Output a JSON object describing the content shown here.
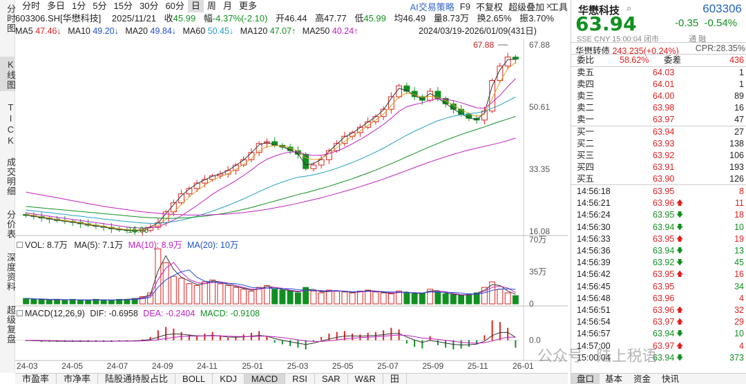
{
  "left_tabs": [
    "分时图",
    "K线图",
    "TICK",
    "成交明细",
    "分价表",
    "深度资料",
    "超级复盘"
  ],
  "period_tabs": [
    "分时",
    "多日",
    "1分",
    "5分",
    "15分",
    "30分",
    "60分",
    "日",
    "周",
    "月",
    "更多"
  ],
  "active_period": "日",
  "menu": {
    "ai": "AI交易策略",
    "f9": "F9",
    "fq": "不复权",
    "overlay": "超级叠加",
    "tools": "工具"
  },
  "info": {
    "code": "603306.SH[华懋科技]",
    "date": "2025/11/21",
    "close_label": "收",
    "close": "45.99",
    "chg_label": "幅",
    "chg": "-4.37%(-2.10)",
    "open_label": "开",
    "open": "46.44",
    "high_label": "高",
    "high": "47.77",
    "low_label": "低",
    "low": "45.99",
    "avg_label": "均",
    "avg": "46.49",
    "vol_label": "量",
    "vol": "8.73万",
    "turn_label": "换",
    "turn": "2.65%",
    "amp_label": "振",
    "amp": "3.70%"
  },
  "ma": {
    "ma5": "MA5",
    "ma5_val": "47.46↓",
    "ma10": "MA10",
    "ma10_val": "49.20↓",
    "ma20": "MA20",
    "ma20_val": "49.84↓",
    "ma60": "MA60",
    "ma60_val": "50.45↓",
    "ma120": "MA120",
    "ma120_val": "47.07↑",
    "ma250": "MA250",
    "ma250_val": "40.24↑",
    "range": "2024/03/19-2026/01/09(431日)"
  },
  "chart_data": {
    "type": "candlestick",
    "price_axis": [
      "67.88",
      "50.61",
      "33.35",
      "16.08"
    ],
    "max_label": "67.88",
    "min_label": "16.08",
    "x_ticks": [
      "24-03",
      "24-05",
      "24-07",
      "24-09",
      "24-11",
      "25-01",
      "25-03",
      "25-05",
      "25-07",
      "25-09",
      "25-11",
      "26-01"
    ],
    "close_series": [
      20.5,
      20.2,
      19.8,
      19.5,
      19.1,
      18.9,
      18.6,
      18.2,
      17.8,
      17.5,
      17.2,
      16.8,
      16.5,
      16.3,
      16.1,
      16.4,
      17.2,
      18.5,
      21.5,
      24.0,
      26.5,
      28.0,
      29.5,
      30.5,
      31.5,
      32.0,
      33.0,
      34.5,
      36.0,
      38.0,
      40.5,
      41.0,
      40.0,
      39.5,
      38.5,
      37.5,
      33.5,
      34.5,
      36.0,
      38.5,
      40.5,
      42.5,
      43.5,
      45.0,
      46.5,
      48.0,
      50.0,
      53.5,
      56.5,
      55.0,
      53.5,
      52.5,
      55.0,
      53.0,
      51.5,
      50.0,
      48.5,
      47.5,
      47.0,
      49.5,
      58.0,
      62.0,
      64.5,
      63.9
    ],
    "ma_series": [
      {
        "name": "MA5",
        "color": "#333333",
        "values": [
          20.6,
          20.3,
          19.9,
          19.6,
          19.2,
          18.9,
          18.6,
          18.3,
          17.9,
          17.6,
          17.3,
          16.9,
          16.6,
          16.4,
          16.2,
          16.5,
          17.3,
          18.4,
          21.0,
          23.5,
          26.0,
          27.8,
          29.3,
          30.4,
          31.4,
          32.0,
          33.0,
          34.4,
          35.9,
          37.9,
          40.1,
          40.8,
          40.1,
          39.6,
          38.7,
          37.6,
          34.5,
          34.9,
          36.1,
          38.3,
          40.3,
          42.3,
          43.4,
          44.9,
          46.4,
          47.9,
          49.8,
          53.0,
          55.8,
          55.2,
          53.8,
          52.8,
          54.4,
          53.1,
          51.6,
          50.1,
          48.7,
          47.6,
          47.1,
          49.0,
          56.5,
          61.0,
          63.8,
          63.9
        ]
      },
      {
        "name": "MA10",
        "color": "#e0a020",
        "values": [
          20.8,
          20.5,
          20.1,
          19.8,
          19.4,
          19.1,
          18.8,
          18.5,
          18.1,
          17.8,
          17.5,
          17.1,
          16.8,
          16.6,
          16.4,
          16.6,
          17.0,
          17.8,
          19.4,
          21.4,
          23.6,
          25.6,
          27.4,
          28.9,
          30.3,
          31.2,
          32.1,
          33.3,
          34.6,
          36.3,
          38.4,
          39.6,
          39.9,
          39.8,
          39.2,
          38.4,
          36.5,
          36.0,
          36.3,
          37.7,
          39.3,
          41.1,
          42.5,
          44.0,
          45.5,
          47.0,
          48.6,
          51.0,
          53.5,
          54.5,
          54.0,
          53.3,
          53.6,
          53.3,
          52.4,
          51.2,
          49.9,
          48.8,
          48.0,
          48.6,
          53.0,
          57.6,
          61.3,
          63.0
        ]
      },
      {
        "name": "MA20",
        "color": "#c020c0",
        "values": [
          21.2,
          20.9,
          20.6,
          20.3,
          20.0,
          19.7,
          19.4,
          19.1,
          18.8,
          18.5,
          18.2,
          17.9,
          17.6,
          17.3,
          17.1,
          17.0,
          17.1,
          17.4,
          18.2,
          19.2,
          20.4,
          21.8,
          23.3,
          24.8,
          26.4,
          27.7,
          28.9,
          30.2,
          31.6,
          33.1,
          34.8,
          36.1,
          37.0,
          37.7,
          38.1,
          38.2,
          37.4,
          37.2,
          37.2,
          37.7,
          38.4,
          39.3,
          40.4,
          41.6,
          42.9,
          44.3,
          45.8,
          47.5,
          49.4,
          50.7,
          51.3,
          51.8,
          52.5,
          52.9,
          52.8,
          52.4,
          51.8,
          51.1,
          50.4,
          50.3,
          51.9,
          53.9,
          56.3,
          58.5
        ]
      },
      {
        "name": "MA60",
        "color": "#20a0c0",
        "values": [
          22.0,
          21.8,
          21.5,
          21.3,
          21.0,
          20.8,
          20.5,
          20.3,
          20.0,
          19.8,
          19.5,
          19.3,
          19.0,
          18.8,
          18.6,
          18.4,
          18.3,
          18.3,
          18.5,
          18.8,
          19.2,
          19.7,
          20.3,
          21.0,
          21.7,
          22.5,
          23.3,
          24.2,
          25.1,
          26.1,
          27.1,
          28.1,
          29.0,
          29.8,
          30.5,
          31.1,
          31.4,
          31.8,
          32.3,
          32.9,
          33.6,
          34.4,
          35.2,
          36.1,
          37.1,
          38.1,
          39.2,
          40.4,
          41.6,
          42.8,
          43.9,
          44.9,
          45.9,
          46.8,
          47.5,
          48.1,
          48.5,
          48.8,
          49.0,
          49.4,
          50.3,
          51.2,
          52.3,
          53.4
        ]
      },
      {
        "name": "MA120",
        "color": "#109020",
        "values": [
          23.0,
          22.8,
          22.6,
          22.4,
          22.2,
          22.0,
          21.8,
          21.6,
          21.4,
          21.2,
          21.0,
          20.8,
          20.6,
          20.4,
          20.2,
          20.0,
          19.9,
          19.8,
          19.7,
          19.7,
          19.8,
          19.9,
          20.1,
          20.3,
          20.6,
          20.9,
          21.3,
          21.7,
          22.2,
          22.7,
          23.3,
          23.9,
          24.5,
          25.1,
          25.7,
          26.3,
          26.8,
          27.4,
          28.0,
          28.6,
          29.3,
          30.0,
          30.7,
          31.5,
          32.3,
          33.1,
          34.0,
          34.9,
          35.8,
          36.8,
          37.7,
          38.7,
          39.6,
          40.5,
          41.4,
          42.2,
          43.0,
          43.7,
          44.4,
          45.1,
          45.9,
          46.6,
          47.3,
          48.0
        ]
      },
      {
        "name": "MA250",
        "color": "#c020c0",
        "values": [
          27.0,
          26.6,
          26.2,
          25.8,
          25.4,
          25.0,
          24.6,
          24.2,
          23.8,
          23.4,
          23.0,
          22.7,
          22.4,
          22.1,
          21.8,
          21.5,
          21.3,
          21.1,
          20.9,
          20.8,
          20.7,
          20.6,
          20.6,
          20.6,
          20.7,
          20.8,
          20.9,
          21.1,
          21.3,
          21.6,
          21.9,
          22.2,
          22.6,
          23.0,
          23.4,
          23.9,
          24.4,
          24.9,
          25.4,
          26.0,
          26.6,
          27.2,
          27.8,
          28.5,
          29.2,
          29.9,
          30.6,
          31.4,
          32.2,
          33.0,
          33.8,
          34.6,
          35.4,
          36.1,
          36.8,
          37.5,
          38.1,
          38.7,
          39.2,
          39.7,
          40.2,
          40.7,
          41.3,
          42.0
        ]
      }
    ],
    "volume_label": "VOL: 8.7万",
    "volume_ma5": "MA(5): 7.1万",
    "volume_ma10": "MA(10): 8.9万",
    "volume_ma20": "MA(20): 10万",
    "volume_axis": [
      "70万",
      "35万",
      "0"
    ],
    "volume_series": [
      6,
      5,
      5,
      4,
      5,
      4,
      5,
      4,
      4,
      5,
      4,
      4,
      5,
      5,
      6,
      8,
      12,
      60,
      45,
      30,
      28,
      22,
      20,
      24,
      26,
      22,
      20,
      18,
      16,
      14,
      18,
      20,
      16,
      15,
      14,
      12,
      18,
      14,
      12,
      15,
      14,
      13,
      12,
      14,
      15,
      13,
      12,
      11,
      14,
      12,
      11,
      12,
      16,
      13,
      11,
      10,
      9,
      11,
      12,
      18,
      24,
      16,
      12,
      9
    ],
    "macd_label": "MACD(12,26,9)",
    "macd_dif": "DIF: -0.6958",
    "macd_dea": "DEA: -0.2404",
    "macd_val": "MACD: -0.9108",
    "macd_axis": [
      "0.0"
    ],
    "macd_series": [
      -0.1,
      -0.1,
      -0.2,
      -0.2,
      -0.2,
      -0.2,
      -0.2,
      -0.2,
      -0.2,
      -0.2,
      -0.2,
      -0.2,
      -0.1,
      -0.1,
      -0.1,
      0.1,
      0.4,
      1.2,
      1.6,
      1.4,
      1.0,
      0.7,
      0.6,
      0.8,
      1.0,
      0.6,
      0.3,
      0.5,
      0.7,
      0.9,
      1.1,
      0.5,
      -0.3,
      -0.5,
      -0.7,
      -0.9,
      -1.1,
      -0.2,
      0.4,
      0.8,
      1.0,
      1.1,
      0.8,
      0.7,
      0.9,
      1.0,
      1.2,
      1.5,
      1.3,
      -0.4,
      -0.8,
      -1.0,
      0.5,
      -0.6,
      -0.9,
      -1.1,
      -1.0,
      -0.8,
      -0.5,
      0.6,
      2.4,
      2.2,
      1.5,
      -0.9
    ]
  },
  "bottom_tabs": [
    "市盈率",
    "市净率",
    "陆股通持股占比",
    "BOLL",
    "KDJ",
    "MACD",
    "RSI",
    "SAR",
    "W&R",
    "田"
  ],
  "active_bottom_tab": "MACD",
  "quote": {
    "name": "华懋科技",
    "code": "603306",
    "price": "63.94",
    "change": "-0.35",
    "change_pct": "-0.54%",
    "meta": "SSE  CNY  15:00:04  闭市",
    "meta_right": "通  融",
    "cb_label": "华懋转债",
    "cb_value": "243.235(+0.24%)",
    "cpr": "CPR:28.35%",
    "weibi_label": "委比",
    "weibi": "58.62%",
    "weicha_label": "委差",
    "weicha": "436",
    "asks": [
      {
        "label": "卖五",
        "price": "64.03",
        "vol": "1"
      },
      {
        "label": "卖四",
        "price": "64.01",
        "vol": "1"
      },
      {
        "label": "卖三",
        "price": "64.00",
        "vol": "89"
      },
      {
        "label": "卖二",
        "price": "63.98",
        "vol": "16"
      },
      {
        "label": "卖一",
        "price": "63.97",
        "vol": "47"
      }
    ],
    "bids": [
      {
        "label": "买一",
        "price": "63.94",
        "vol": "27"
      },
      {
        "label": "买二",
        "price": "63.93",
        "vol": "138"
      },
      {
        "label": "买三",
        "price": "63.92",
        "vol": "106"
      },
      {
        "label": "买四",
        "price": "63.91",
        "vol": "193"
      },
      {
        "label": "买五",
        "price": "63.90",
        "vol": "126"
      }
    ],
    "ticks": [
      {
        "time": "14:56:18",
        "price": "63.95",
        "dir": "",
        "vol": "8",
        "color": "red"
      },
      {
        "time": "14:56:21",
        "price": "63.96",
        "dir": "up",
        "vol": "11",
        "color": "red"
      },
      {
        "time": "14:56:24",
        "price": "63.95",
        "dir": "down",
        "vol": "18",
        "color": "red"
      },
      {
        "time": "14:56:30",
        "price": "63.94",
        "dir": "down",
        "vol": "10",
        "color": "green"
      },
      {
        "time": "14:56:33",
        "price": "63.95",
        "dir": "up",
        "vol": "19",
        "color": "red"
      },
      {
        "time": "14:56:36",
        "price": "63.94",
        "dir": "down",
        "vol": "13",
        "color": "green"
      },
      {
        "time": "14:56:39",
        "price": "63.92",
        "dir": "down",
        "vol": "45",
        "color": "green"
      },
      {
        "time": "14:56:42",
        "price": "63.95",
        "dir": "up",
        "vol": "16",
        "color": "red"
      },
      {
        "time": "14:56:45",
        "price": "63.95",
        "dir": "",
        "vol": "34",
        "color": "green"
      },
      {
        "time": "14:56:48",
        "price": "63.96",
        "dir": "",
        "vol": "4",
        "color": "red"
      },
      {
        "time": "14:56:51",
        "price": "63.96",
        "dir": "up",
        "vol": "32",
        "color": "red"
      },
      {
        "time": "14:56:54",
        "price": "63.97",
        "dir": "up",
        "vol": "29",
        "color": "red"
      },
      {
        "time": "14:56:57",
        "price": "63.94",
        "dir": "down",
        "vol": "10",
        "color": "green"
      },
      {
        "time": "14:57:00",
        "price": "63.97",
        "dir": "up",
        "vol": "4",
        "color": "red"
      },
      {
        "time": "15:00:04",
        "price": "63.94",
        "dir": "down",
        "vol": "373",
        "color": "green"
      }
    ]
  },
  "panel_tabs": [
    "盘口",
    "基本",
    "资金",
    "快讯"
  ],
  "active_panel_tab": "盘口",
  "watermark": "公众号 · 陆上税语",
  "colors": {
    "up": "#e02020",
    "down": "#109020",
    "accent": "#2266bb"
  }
}
